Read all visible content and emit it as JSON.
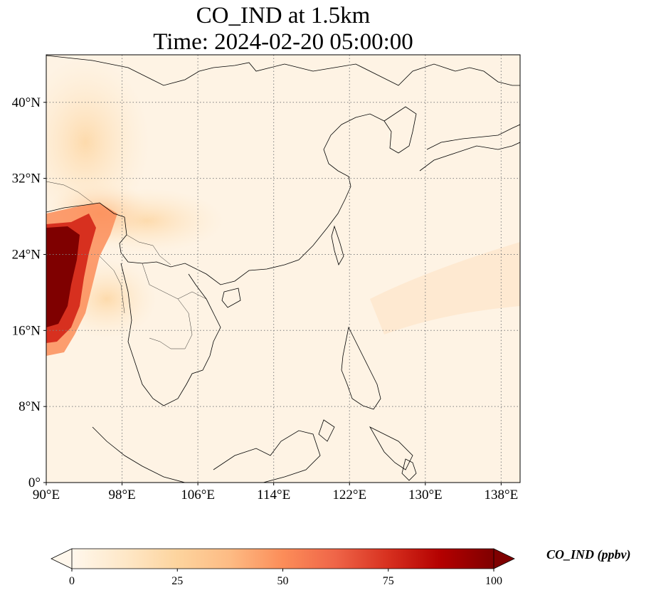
{
  "title": {
    "line1": "CO_IND at 1.5km",
    "line2": "Time: 2024-02-20 05:00:00"
  },
  "map": {
    "projection": "PlateCarree",
    "lon_range": [
      90,
      140
    ],
    "lat_range": [
      0,
      45
    ],
    "gridlines": "dotted",
    "x_ticks": [
      {
        "value": 90,
        "label": "90°E"
      },
      {
        "value": 98,
        "label": "98°E"
      },
      {
        "value": 106,
        "label": "106°E"
      },
      {
        "value": 114,
        "label": "114°E"
      },
      {
        "value": 122,
        "label": "122°E"
      },
      {
        "value": 130,
        "label": "130°E"
      },
      {
        "value": 138,
        "label": "138°E"
      }
    ],
    "y_ticks": [
      {
        "value": 0,
        "label": "0°"
      },
      {
        "value": 8,
        "label": "8°N"
      },
      {
        "value": 16,
        "label": "16°N"
      },
      {
        "value": 24,
        "label": "24°N"
      },
      {
        "value": 32,
        "label": "32°N"
      },
      {
        "value": 40,
        "label": "40°N"
      }
    ]
  },
  "colorbar": {
    "label": "CO_IND (ppbv)",
    "colormap": "OrRd",
    "range": [
      0,
      100
    ],
    "extend": "both",
    "colors": [
      "#fff7ec",
      "#fee8c8",
      "#fdd49e",
      "#fdbb84",
      "#fc8d59",
      "#ef6548",
      "#d7301f",
      "#b30000",
      "#7f0000"
    ],
    "ticks": [
      {
        "value": 0,
        "label": "0"
      },
      {
        "value": 25,
        "label": "25"
      },
      {
        "value": 50,
        "label": "50"
      },
      {
        "value": 75,
        "label": "75"
      },
      {
        "value": 100,
        "label": "100"
      }
    ]
  }
}
